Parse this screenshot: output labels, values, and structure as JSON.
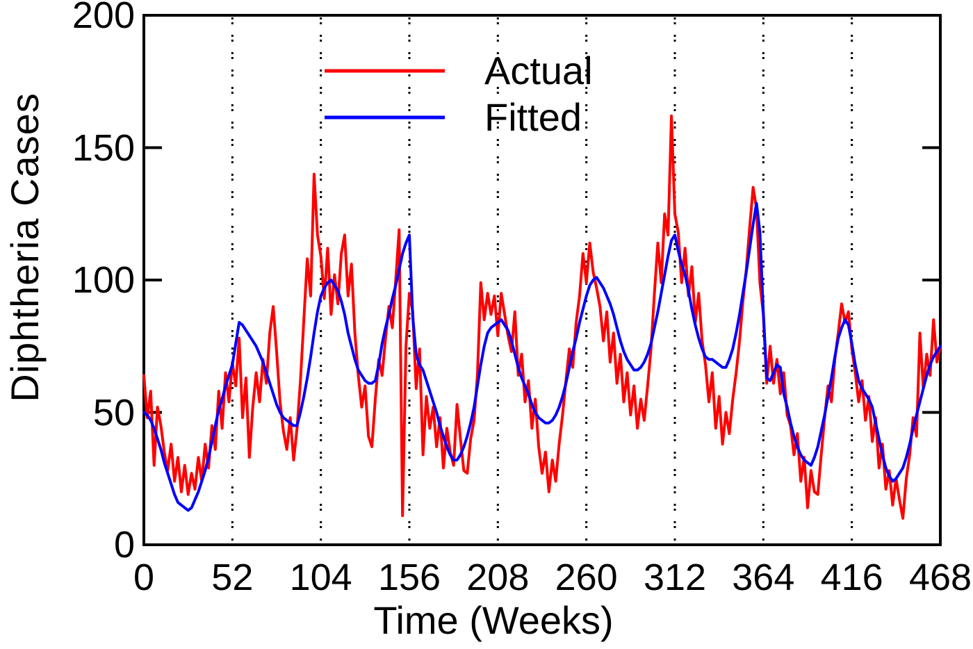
{
  "figure": {
    "background": "#ffffff",
    "axis_color": "#000000"
  },
  "chart_data": {
    "type": "line",
    "title": "",
    "xlabel": "Time (Weeks)",
    "ylabel": "Diphtheria Cases",
    "xlim": [
      0,
      468
    ],
    "ylim": [
      0,
      200
    ],
    "x_ticks": [
      0,
      52,
      104,
      156,
      208,
      260,
      312,
      364,
      416,
      468
    ],
    "y_ticks": [
      0,
      50,
      100,
      150,
      200
    ],
    "grid": {
      "vertical_dotted_at": [
        52,
        104,
        156,
        208,
        260,
        312,
        364,
        416
      ],
      "horizontal": false,
      "style": "dotted"
    },
    "legend": {
      "position": "inside-top-center",
      "entries": [
        {
          "label": "Actual",
          "color": "#ff0000"
        },
        {
          "label": "Fitted",
          "color": "#0000ff"
        }
      ]
    },
    "x_start": 0,
    "x_step": 2,
    "series": [
      {
        "name": "Actual",
        "color": "#ff0000",
        "values": [
          64,
          48,
          58,
          30,
          52,
          45,
          35,
          28,
          38,
          24,
          33,
          20,
          30,
          19,
          27,
          21,
          33,
          24,
          38,
          29,
          45,
          36,
          58,
          44,
          65,
          54,
          69,
          60,
          78,
          48,
          63,
          33,
          52,
          65,
          54,
          70,
          61,
          80,
          90,
          73,
          54,
          43,
          36,
          48,
          32,
          44,
          62,
          85,
          108,
          94,
          140,
          117,
          109,
          93,
          112,
          87,
          102,
          91,
          110,
          117,
          94,
          106,
          80,
          64,
          52,
          60,
          41,
          37,
          55,
          70,
          64,
          78,
          90,
          82,
          100,
          119,
          11,
          75,
          95,
          88,
          59,
          74,
          34,
          56,
          44,
          52,
          37,
          48,
          29,
          44,
          35,
          30,
          53,
          40,
          28,
          27,
          40,
          47,
          64,
          99,
          85,
          95,
          87,
          94,
          79,
          95,
          87,
          79,
          73,
          88,
          64,
          72,
          54,
          62,
          44,
          55,
          37,
          27,
          35,
          20,
          32,
          24,
          38,
          49,
          62,
          74,
          67,
          84,
          94,
          110,
          99,
          114,
          103,
          97,
          90,
          77,
          88,
          69,
          80,
          61,
          72,
          54,
          65,
          49,
          60,
          44,
          55,
          47,
          60,
          74,
          95,
          114,
          99,
          125,
          117,
          162,
          125,
          118,
          99,
          112,
          94,
          105,
          84,
          95,
          77,
          68,
          54,
          65,
          44,
          56,
          38,
          50,
          42,
          55,
          65,
          77,
          92,
          104,
          120,
          135,
          127,
          99,
          87,
          61,
          75,
          61,
          70,
          57,
          65,
          49,
          45,
          34,
          42,
          24,
          33,
          14,
          28,
          20,
          19,
          34,
          48,
          60,
          54,
          70,
          80,
          91,
          84,
          88,
          74,
          65,
          54,
          62,
          47,
          56,
          39,
          48,
          29,
          38,
          21,
          28,
          15,
          25,
          17,
          10,
          25,
          34,
          48,
          41,
          80,
          59,
          72,
          64,
          85,
          69,
          75
        ]
      },
      {
        "name": "Fitted",
        "color": "#0000ff",
        "values": [
          50,
          49,
          47,
          44,
          40,
          36,
          31,
          27,
          23,
          19,
          16,
          15,
          14,
          13,
          14,
          17,
          20,
          24,
          28,
          33,
          39,
          45,
          51,
          55,
          60,
          64,
          68,
          76,
          84,
          83,
          81,
          79,
          77,
          75,
          72,
          69,
          65,
          61,
          57,
          53,
          50,
          48,
          47,
          46,
          45,
          45,
          50,
          56,
          63,
          71,
          80,
          88,
          94,
          97,
          99,
          100,
          98,
          96,
          92,
          87,
          80,
          75,
          70,
          66,
          64,
          62,
          61,
          61,
          62,
          68,
          76,
          82,
          87,
          93,
          98,
          104,
          110,
          114,
          117,
          86,
          72,
          68,
          66,
          62,
          58,
          54,
          50,
          45,
          41,
          37,
          34,
          32,
          32,
          34,
          37,
          41,
          46,
          52,
          60,
          68,
          75,
          80,
          82,
          83,
          84,
          85,
          83,
          81,
          77,
          72,
          67,
          63,
          60,
          57,
          53,
          50,
          48,
          47,
          46,
          46,
          47,
          49,
          52,
          56,
          61,
          67,
          73,
          78,
          84,
          89,
          94,
          98,
          100,
          101,
          99,
          97,
          94,
          91,
          87,
          82,
          77,
          73,
          70,
          68,
          66,
          66,
          67,
          69,
          72,
          76,
          82,
          88,
          95,
          102,
          109,
          115,
          117,
          111,
          106,
          102,
          96,
          89,
          83,
          78,
          74,
          71,
          70,
          70,
          69,
          68,
          67,
          67,
          70,
          74,
          80,
          87,
          95,
          103,
          112,
          121,
          129,
          118,
          88,
          63,
          62,
          65,
          68,
          67,
          57,
          52,
          46,
          41,
          37,
          34,
          32,
          31,
          30,
          33,
          37,
          43,
          49,
          56,
          63,
          71,
          78,
          82,
          85,
          83,
          76,
          68,
          62,
          59,
          57,
          55,
          52,
          46,
          40,
          34,
          29,
          26,
          24,
          25,
          27,
          29,
          33,
          38,
          44,
          49,
          54,
          59,
          64,
          68,
          71,
          73,
          75
        ]
      }
    ]
  }
}
